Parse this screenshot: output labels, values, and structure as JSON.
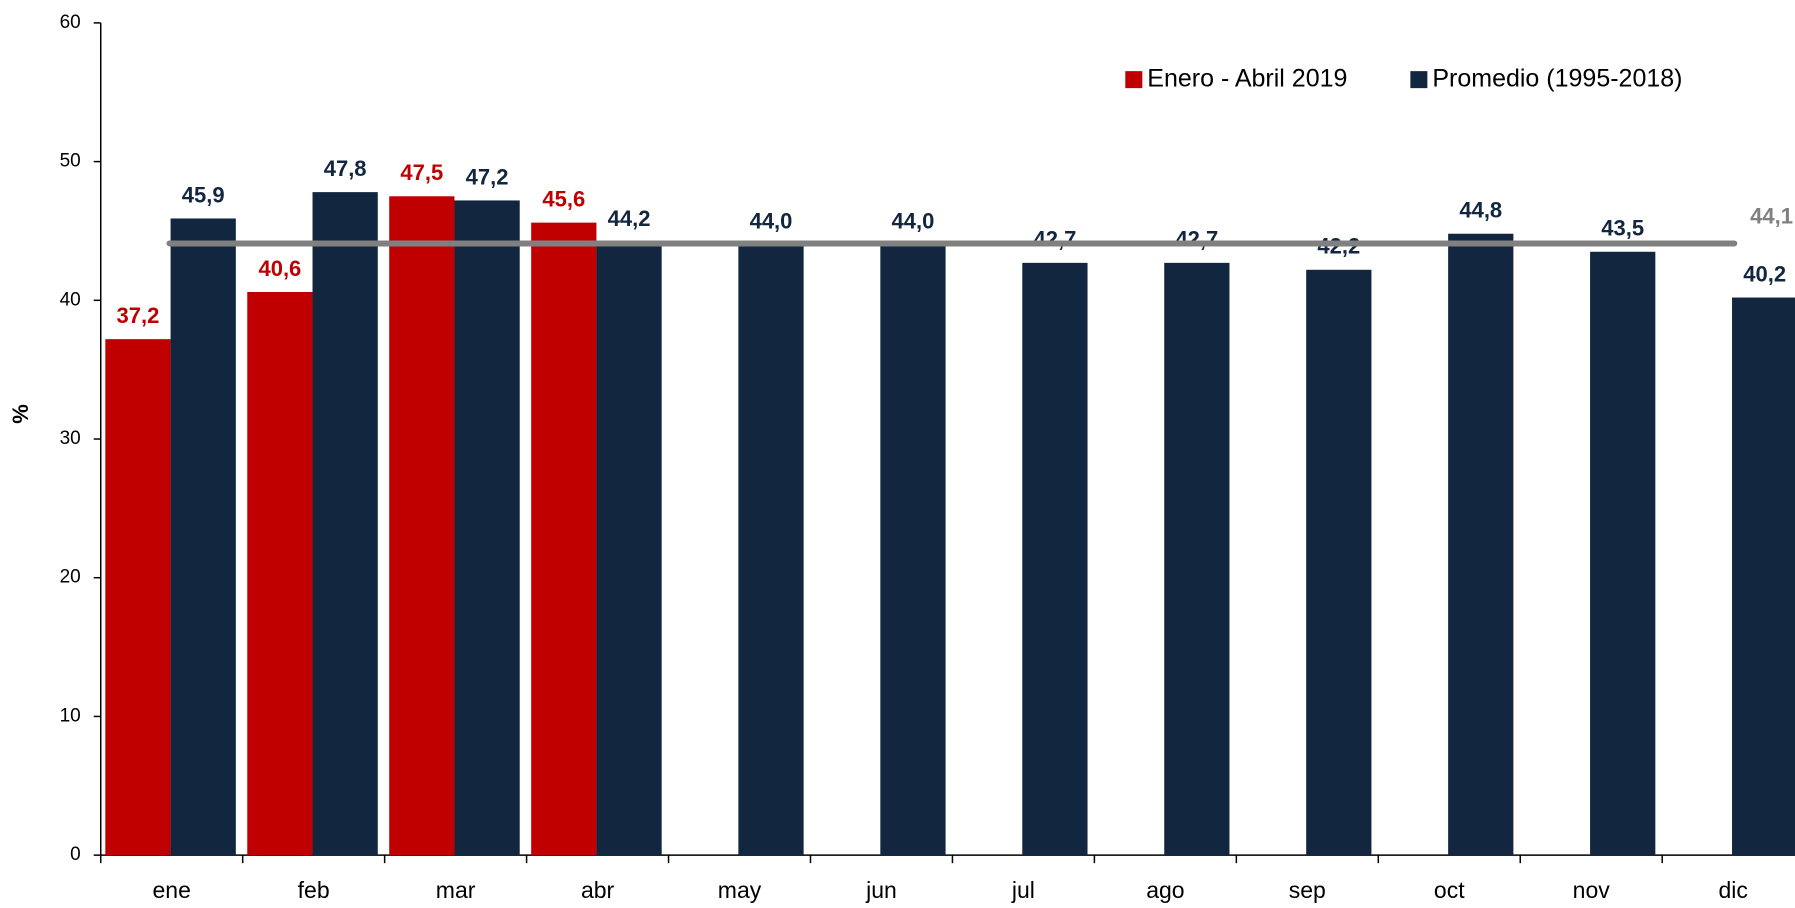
{
  "chart_data": {
    "type": "bar",
    "y_label": "%",
    "categories": [
      "ene",
      "feb",
      "mar",
      "abr",
      "may",
      "jun",
      "jul",
      "ago",
      "sep",
      "oct",
      "nov",
      "dic"
    ],
    "series": [
      {
        "name": "Enero - Abril 2019",
        "color": "#c00000",
        "values": [
          37.2,
          40.6,
          47.5,
          45.6,
          null,
          null,
          null,
          null,
          null,
          null,
          null,
          null
        ],
        "value_labels": [
          "37,2",
          "40,6",
          "47,5",
          "45,6",
          null,
          null,
          null,
          null,
          null,
          null,
          null,
          null
        ]
      },
      {
        "name": "Promedio (1995-2018)",
        "color": "#13263f",
        "values": [
          45.9,
          47.8,
          47.2,
          44.2,
          44.0,
          44.0,
          42.7,
          42.7,
          42.2,
          44.8,
          43.5,
          40.2
        ],
        "value_labels": [
          "45,9",
          "47,8",
          "47,2",
          "44,2",
          "44,0",
          "44,0",
          "42,7",
          "42,7",
          "42,2",
          "44,8",
          "43,5",
          "40,2"
        ]
      }
    ],
    "reference_line": {
      "value": 44.1,
      "label": "44,1",
      "color": "#808080"
    },
    "ylim": [
      0,
      60
    ],
    "yticks": [
      0,
      10,
      20,
      30,
      40,
      50,
      60
    ],
    "legend": "top-right"
  }
}
